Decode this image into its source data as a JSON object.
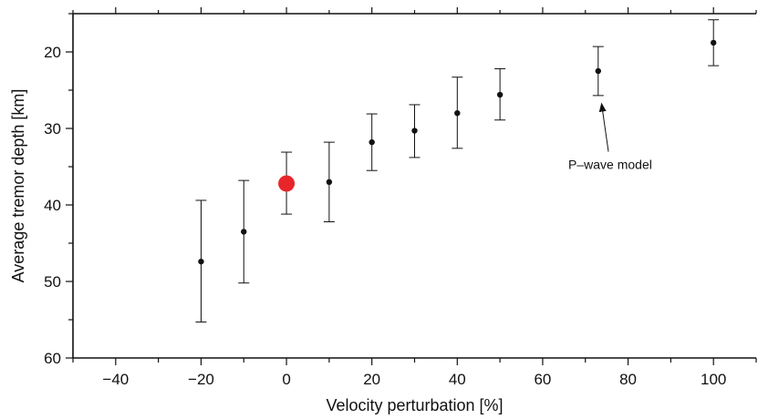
{
  "chart_data": {
    "type": "scatter",
    "title": "",
    "xlabel": "Velocity perturbation [%]",
    "ylabel": "Average tremor depth [km]",
    "xlim": [
      -50,
      110
    ],
    "ylim": [
      60,
      15
    ],
    "y_inverted": true,
    "grid": false,
    "legend": "none",
    "x_ticks": [
      -40,
      -20,
      0,
      20,
      40,
      60,
      80,
      100
    ],
    "x_tick_labels": [
      "−40",
      "−20",
      "0",
      "20",
      "40",
      "60",
      "80",
      "100"
    ],
    "y_ticks": [
      20,
      30,
      40,
      50,
      60
    ],
    "y_tick_labels": [
      "20",
      "30",
      "40",
      "50",
      "60"
    ],
    "series": [
      {
        "points": [
          {
            "x": -20,
            "y": 47.4,
            "err_low": 55.3,
            "err_high": 39.4
          },
          {
            "x": -10,
            "y": 43.5,
            "err_low": 50.2,
            "err_high": 36.8
          },
          {
            "x": 10,
            "y": 37.0,
            "err_low": 42.2,
            "err_high": 31.8
          },
          {
            "x": 20,
            "y": 31.8,
            "err_low": 35.5,
            "err_high": 28.1
          },
          {
            "x": 30,
            "y": 30.3,
            "err_low": 33.8,
            "err_high": 26.9
          },
          {
            "x": 40,
            "y": 28.0,
            "err_low": 32.6,
            "err_high": 23.3
          },
          {
            "x": 50,
            "y": 25.6,
            "err_low": 28.9,
            "err_high": 22.2
          },
          {
            "x": 73,
            "y": 22.5,
            "err_low": 25.7,
            "err_high": 19.3
          },
          {
            "x": 100,
            "y": 18.8,
            "err_low": 21.8,
            "err_high": 15.8
          }
        ],
        "color": "#111111"
      },
      {
        "points": [
          {
            "x": 0,
            "y": 37.2,
            "err_low": 41.2,
            "err_high": 33.1
          }
        ],
        "color": "#e8262a"
      }
    ],
    "annotations": [
      {
        "text": "P–wave model",
        "arrow_to": {
          "x": 74,
          "y": 26.5
        },
        "text_at": {
          "x": 66,
          "y": 35.3
        }
      }
    ]
  }
}
